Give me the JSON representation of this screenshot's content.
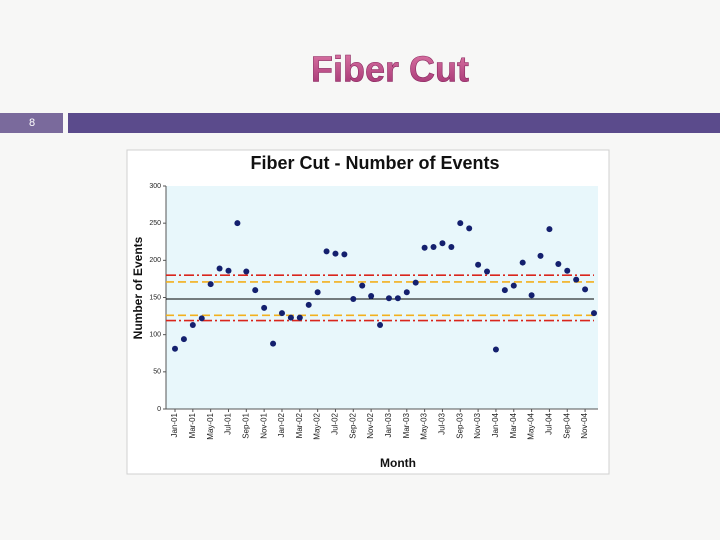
{
  "slide": {
    "title": "Fiber Cut",
    "number": "8"
  },
  "chart_data": {
    "type": "scatter",
    "title": "Fiber Cut - Number of Events",
    "x_label": "Month",
    "y_label": "Number of Events",
    "categories": [
      "Jan-01",
      null,
      "Mar-01",
      null,
      "May-01",
      null,
      "Jul-01",
      null,
      "Sep-01",
      null,
      "Nov-01",
      null,
      "Jan-02",
      null,
      "Mar-02",
      null,
      "May-02",
      null,
      "Jul-02",
      null,
      "Sep-02",
      null,
      "Nov-02",
      null,
      "Jan-03",
      null,
      "Mar-03",
      null,
      "May-03",
      null,
      "Jul-03",
      null,
      "Sep-03",
      null,
      "Nov-03",
      null,
      "Jan-04",
      null,
      "Mar-04",
      null,
      "May-04",
      null,
      "Jul-04",
      null,
      "Sep-04",
      null,
      "Nov-04",
      null
    ],
    "values": [
      81,
      94,
      113,
      122,
      168,
      189,
      186,
      250,
      185,
      160,
      136,
      88,
      129,
      123,
      123,
      140,
      157,
      212,
      209,
      208,
      148,
      166,
      152,
      113,
      149,
      149,
      157,
      170,
      217,
      218,
      223,
      218,
      250,
      243,
      194,
      185,
      80,
      160,
      166,
      197,
      153,
      206,
      242,
      195,
      186,
      174,
      161,
      129
    ],
    "color": "#14206e",
    "reference_lines": [
      {
        "value": 148,
        "color": "#000000",
        "style": "solid"
      },
      {
        "value": 180,
        "color": "#d9261c",
        "style": "dash-dot"
      },
      {
        "value": 119,
        "color": "#d9261c",
        "style": "dash-dot"
      },
      {
        "value": 171,
        "color": "#f2b01e",
        "style": "dashed"
      },
      {
        "value": 126,
        "color": "#f2b01e",
        "style": "dashed"
      }
    ],
    "ylim": [
      0,
      300
    ],
    "yticks": [
      0,
      50,
      100,
      150,
      200,
      250,
      300
    ]
  }
}
